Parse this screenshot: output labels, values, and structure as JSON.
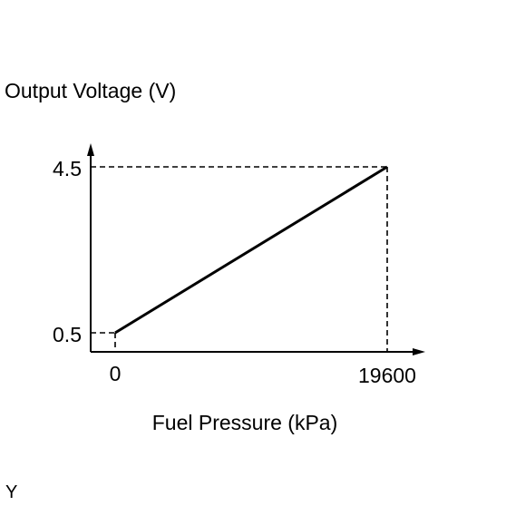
{
  "chart_data": {
    "type": "line",
    "ylabel": "Output Voltage (V)",
    "xlabel": "Fuel Pressure (kPa)",
    "x_ticks": [
      "0",
      "19600"
    ],
    "y_ticks": [
      "0.5",
      "4.5"
    ],
    "series": [
      {
        "x": [
          0,
          19600
        ],
        "y": [
          0.5,
          4.5
        ]
      }
    ],
    "reference_lines": "dashed",
    "footer_mark": "Y",
    "line_color": "#000000"
  }
}
